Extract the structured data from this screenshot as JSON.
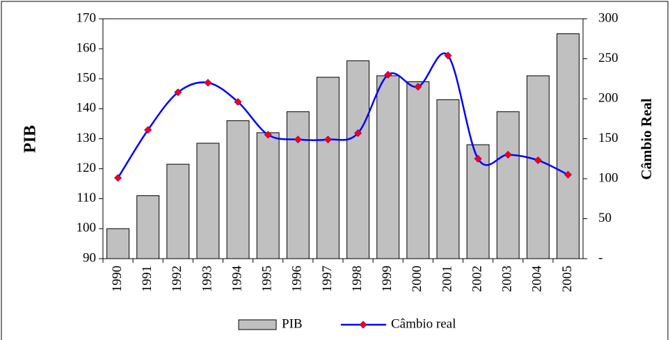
{
  "chart_data": {
    "type": "bar_line",
    "categories": [
      "1990",
      "1991",
      "1992",
      "1993",
      "1994",
      "1995",
      "1996",
      "1997",
      "1998",
      "1999",
      "2000",
      "2001",
      "2002",
      "2003",
      "2004",
      "2005"
    ],
    "series": [
      {
        "name": "PIB",
        "type": "bar",
        "axis": "y",
        "color": "#c0c0c0",
        "values": [
          100,
          111,
          121.5,
          128.5,
          136,
          132,
          139,
          150.5,
          156,
          151,
          149,
          143,
          128,
          139,
          151,
          165
        ]
      },
      {
        "name": "Câmbio real",
        "type": "line",
        "axis": "y2",
        "color": "#0000ff",
        "marker_color": "#ff0000",
        "values": [
          101,
          161,
          208,
          220,
          196,
          155,
          149,
          149,
          157,
          230,
          215,
          254,
          125,
          130,
          123,
          105
        ]
      }
    ],
    "ylabel": "PIB",
    "y2label": "Câmbio Real",
    "ylim": [
      90,
      170
    ],
    "yticks": [
      90,
      100,
      110,
      120,
      130,
      140,
      150,
      160,
      170
    ],
    "y2lim": [
      0,
      300
    ],
    "y2ticks": [
      {
        "value": 0,
        "label": "-"
      },
      50,
      100,
      150,
      200,
      250,
      300
    ],
    "legend": "bottom"
  }
}
